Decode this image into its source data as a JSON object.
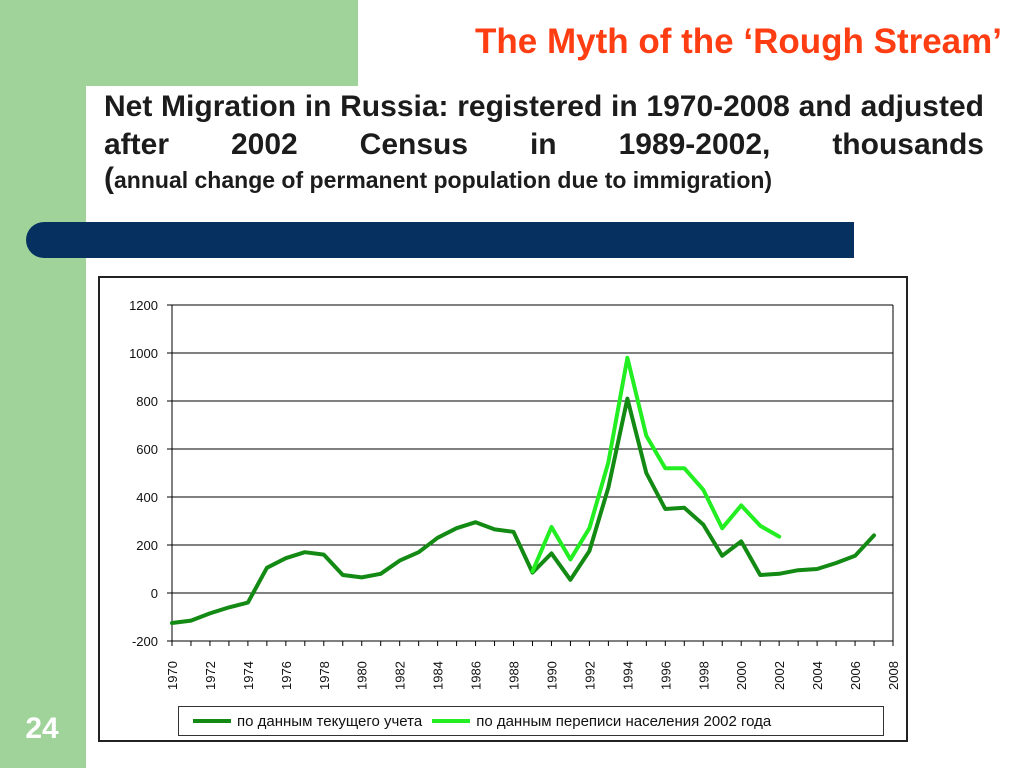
{
  "slide": {
    "page_number": "24",
    "title": "The Myth of the ‘Rough Stream’",
    "subtitle_main": "Net Migration in Russia: registered in 1970-2008 and adjusted after 2002 Census in 1989-2002, thousands",
    "subtitle_paren_open": "(",
    "subtitle_small": "annual change of permanent population due to immigration)"
  },
  "colors": {
    "band": "#9fd39a",
    "title": "#ff3d12",
    "bar": "#05305f",
    "series_registered": "#138a13",
    "series_census": "#22ee22"
  },
  "chart_data": {
    "type": "line",
    "title": "",
    "xlabel": "",
    "ylabel": "",
    "ylim": [
      -200,
      1200
    ],
    "yticks": [
      "1200",
      "1000",
      "800",
      "600",
      "400",
      "200",
      "0",
      "-200"
    ],
    "xticks": [
      "1970",
      "1972",
      "1974",
      "1976",
      "1978",
      "1980",
      "1982",
      "1984",
      "1986",
      "1988",
      "1990",
      "1992",
      "1994",
      "1996",
      "1998",
      "2000",
      "2002",
      "2004",
      "2006",
      "2008"
    ],
    "grid": true,
    "legend_position": "bottom",
    "series": [
      {
        "name": "по данным текущего учета",
        "color": "#138a13",
        "x": [
          1970,
          1971,
          1972,
          1973,
          1974,
          1975,
          1976,
          1977,
          1978,
          1979,
          1980,
          1981,
          1982,
          1983,
          1984,
          1985,
          1986,
          1987,
          1988,
          1989,
          1990,
          1991,
          1992,
          1993,
          1994,
          1995,
          1996,
          1997,
          1998,
          1999,
          2000,
          2001,
          2002,
          2003,
          2004,
          2005,
          2006,
          2007
        ],
        "values": [
          -125,
          -115,
          -85,
          -60,
          -40,
          105,
          145,
          170,
          160,
          75,
          65,
          80,
          135,
          170,
          230,
          270,
          295,
          265,
          255,
          85,
          165,
          55,
          175,
          440,
          810,
          500,
          350,
          355,
          285,
          155,
          215,
          75,
          80,
          95,
          100,
          125,
          155,
          240
        ]
      },
      {
        "name": "по данным переписи населения 2002 года",
        "color": "#22ee22",
        "x": [
          1989,
          1990,
          1991,
          1992,
          1993,
          1994,
          1995,
          1996,
          1997,
          1998,
          1999,
          2000,
          2001,
          2002
        ],
        "values": [
          90,
          275,
          140,
          270,
          545,
          980,
          655,
          520,
          520,
          430,
          270,
          365,
          280,
          235
        ]
      }
    ]
  }
}
